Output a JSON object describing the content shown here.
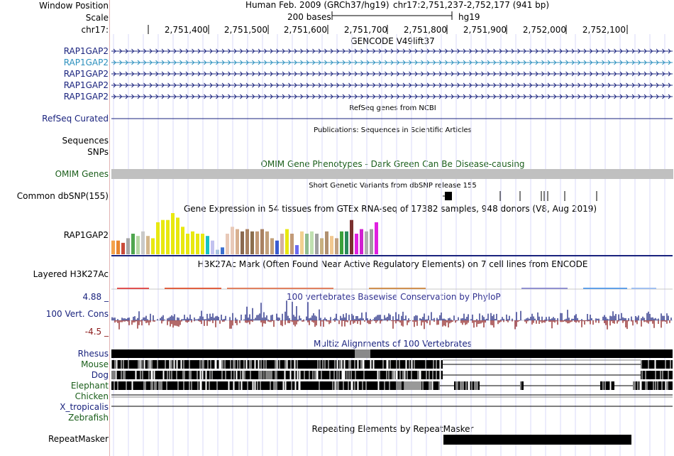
{
  "header": {
    "window_position_label": "Window Position",
    "scale_label": "Scale",
    "chrom_label": "chr17:",
    "assembly_title": "Human Feb. 2009 (GRCh37/hg19)",
    "position": "chr17:2,751,237-2,752,177 (941 bp)",
    "scale_text": "200 bases",
    "db": "hg19"
  },
  "ruler": {
    "ticks": [
      "2,751,400",
      "2,751,500",
      "2,751,600",
      "2,751,700",
      "2,751,800",
      "2,751,900",
      "2,752,000",
      "2,752,100"
    ]
  },
  "gencode": {
    "title": "GENCODE V49lift37",
    "genes": [
      "RAP1GAP2",
      "RAP1GAP2",
      "RAP1GAP2",
      "RAP1GAP2",
      "RAP1GAP2"
    ],
    "colors": [
      "#1a237e",
      "#2a8fbd",
      "#1a237e",
      "#1a237e",
      "#1a237e"
    ]
  },
  "refseq": {
    "label": "RefSeq Curated",
    "title": "RefSeq genes from NCBI",
    "color": "#1a237e"
  },
  "publications": {
    "title": "Publications: Sequences in Scientific Articles",
    "label1": "Sequences",
    "label2": "SNPs"
  },
  "omim": {
    "label": "OMIM Genes",
    "title": "OMIM Gene Phenotypes - Dark Green Can Be Disease-causing",
    "color": "#1a5e1a"
  },
  "dbsnp": {
    "label": "Common dbSNP(155)",
    "title": "Short Genetic Variants from dbSNP release 155"
  },
  "gtex": {
    "label": "RAP1GAP2",
    "title": "Gene Expression in 54 tissues from GTEx RNA-seq of 17382 samples, 948 donors (V8, Aug 2019)",
    "values": [
      6,
      6,
      5,
      7,
      9,
      8,
      10,
      8,
      7,
      14,
      15,
      15,
      18,
      16,
      12,
      9,
      10,
      9,
      9,
      8,
      6,
      2,
      3,
      9,
      12,
      11,
      10,
      11,
      10,
      10,
      11,
      10,
      7,
      6,
      9,
      11,
      9,
      4,
      10,
      9,
      10,
      9,
      7,
      10,
      8,
      7,
      10,
      10,
      15,
      9,
      11,
      10,
      11,
      14
    ],
    "colors": [
      "#f4a24a",
      "#e8862e",
      "#c94b3a",
      "#a5a5a5",
      "#4fa64f",
      "#b5d7a4",
      "#c9c9c9",
      "#d4b78c",
      "#e8e810",
      "#e8e810",
      "#e8e810",
      "#e8e810",
      "#e8e810",
      "#e8e810",
      "#e8e810",
      "#e8e810",
      "#e8e810",
      "#e8e810",
      "#e8e810",
      "#16c3c3",
      "#c2c2f0",
      "#a8c2e0",
      "#3b6fd0",
      "#e8c9b8",
      "#e8c9b8",
      "#d8b090",
      "#8b6a50",
      "#a98262",
      "#8c6f4e",
      "#c29a77",
      "#a98262",
      "#c2a07a",
      "#c2a07a",
      "#3a5bd0",
      "#d4b0a0",
      "#e8e810",
      "#c29a77",
      "#6a6af0",
      "#f2d090",
      "#8fbc8f",
      "#c0e0b0",
      "#a0a0a0",
      "#c8b080",
      "#b09070",
      "#f2c890",
      "#c0a080",
      "#3ba03b",
      "#2a8a5a",
      "#7a3030",
      "#e020e0",
      "#d020d0",
      "#b0b0b0",
      "#a0a0a0",
      "#e020e0"
    ]
  },
  "encode": {
    "label": "Layered H3K27Ac",
    "title": "H3K27Ac Mark (Often Found Near Active Regulatory Elements) on 7 cell lines from ENCODE"
  },
  "phylop": {
    "label": "100 Vert. Cons",
    "title": "100 vertebrates Basewise Conservation by PhyloP",
    "ymax": "4.88 _",
    "ymin": "-4.5 _",
    "pos_color": "#1a237e",
    "neg_color": "#8b1a1a"
  },
  "multiz": {
    "title": "Multiz Alignments of 100 Vertebrates",
    "species": [
      {
        "name": "Rhesus",
        "color": "#1a237e"
      },
      {
        "name": "Mouse",
        "color": "#1a5e1a"
      },
      {
        "name": "Dog",
        "color": "#1a237e"
      },
      {
        "name": "Elephant",
        "color": "#1a5e1a"
      },
      {
        "name": "Chicken",
        "color": "#1a5e1a"
      },
      {
        "name": "X_tropicalis",
        "color": "#1a237e"
      },
      {
        "name": "Zebrafish",
        "color": "#1a5e1a"
      }
    ]
  },
  "repeatmasker": {
    "label": "RepeatMasker",
    "title": "Repeating Elements by RepeatMasker"
  }
}
